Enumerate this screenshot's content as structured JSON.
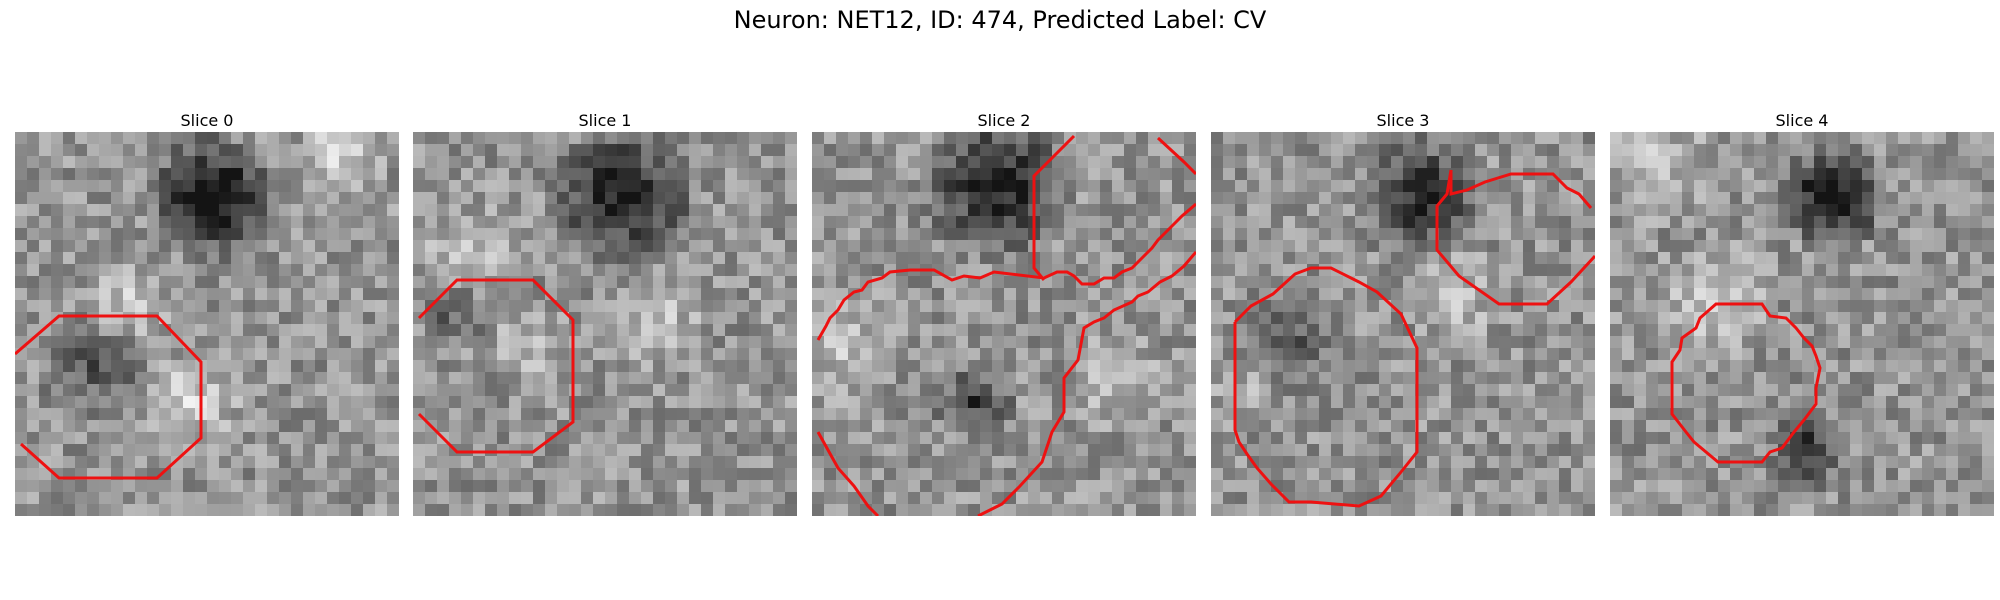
{
  "figure": {
    "title": "Neuron: NET12, ID: 474, Predicted Label: CV"
  },
  "contour_color": "#ee1111",
  "panels": [
    {
      "label": "Slice 0"
    },
    {
      "label": "Slice 1"
    },
    {
      "label": "Slice 2"
    },
    {
      "label": "Slice 3"
    },
    {
      "label": "Slice 4"
    }
  ]
}
